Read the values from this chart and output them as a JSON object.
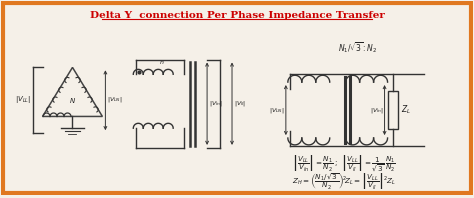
{
  "title": "Delta Y  connection Per Phase Impedance Transfer",
  "title_color": "#cc0000",
  "bg_color": "#f5f0e8",
  "border_color": "#e07820",
  "border_lw": 3,
  "text_color": "#222222"
}
